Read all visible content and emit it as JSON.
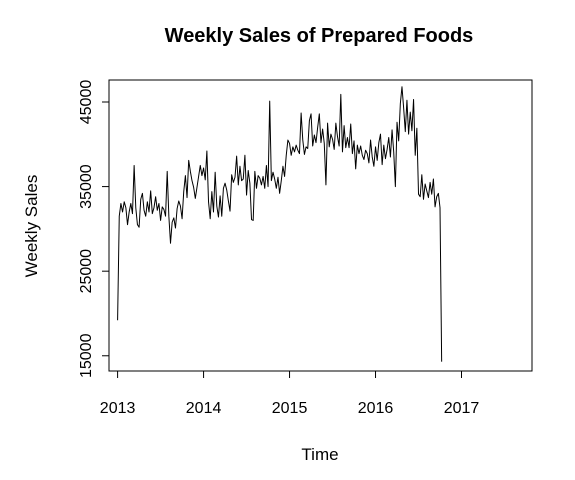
{
  "chart_data": {
    "type": "line",
    "title": "Weekly Sales of Prepared Foods",
    "xlabel": "Time",
    "ylabel": "Weekly Sales",
    "x_ticks": [
      2013,
      2014,
      2015,
      2016,
      2017
    ],
    "y_ticks": [
      15000,
      25000,
      35000,
      45000
    ],
    "xlim": [
      2012.9,
      2017.82
    ],
    "ylim": [
      13200,
      47600
    ],
    "grid": false,
    "legend": "none",
    "line_color": "#000000",
    "series": [
      {
        "frequency": "weekly",
        "x_start": 2013.0,
        "x_step": 0.019231,
        "values": [
          19200,
          31500,
          33000,
          32000,
          33200,
          32500,
          30500,
          32000,
          33000,
          31800,
          37500,
          32500,
          30500,
          30200,
          33500,
          34200,
          32200,
          31500,
          33200,
          32000,
          34500,
          31800,
          32500,
          33800,
          32200,
          33000,
          31000,
          32600,
          32300,
          31500,
          36800,
          31500,
          28300,
          30800,
          31300,
          30100,
          32400,
          33300,
          32700,
          31200,
          34400,
          36300,
          33700,
          38100,
          36800,
          35700,
          34900,
          33600,
          34900,
          36200,
          37500,
          36300,
          37200,
          35800,
          39200,
          33200,
          31200,
          34400,
          32000,
          36700,
          32700,
          31400,
          33900,
          31500,
          34800,
          35400,
          34600,
          33300,
          32100,
          36400,
          35500,
          36100,
          38600,
          35200,
          37400,
          35700,
          35900,
          38700,
          34000,
          36900,
          35400,
          31100,
          31000,
          36800,
          34800,
          36300,
          36000,
          35200,
          36200,
          34800,
          37500,
          35000,
          45100,
          35700,
          36700,
          35900,
          34800,
          36100,
          34200,
          35700,
          37400,
          36200,
          38700,
          40500,
          40100,
          38700,
          39700,
          39100,
          39900,
          39300,
          38900,
          43700,
          40500,
          38800,
          39700,
          39500,
          42800,
          43600,
          39800,
          41100,
          40200,
          42000,
          43600,
          40200,
          41800,
          40100,
          35200,
          42500,
          39700,
          41200,
          40600,
          39400,
          42500,
          40900,
          39800,
          45900,
          39100,
          42200,
          39600,
          40800,
          39600,
          42400,
          38900,
          40400,
          37100,
          39900,
          38900,
          39800,
          38700,
          38200,
          39300,
          38900,
          37800,
          40500,
          38500,
          37400,
          39700,
          38100,
          40200,
          41200,
          37600,
          39900,
          38300,
          39400,
          40800,
          38500,
          41700,
          39100,
          35000,
          42600,
          40400,
          44800,
          46800,
          44300,
          41500,
          45200,
          41200,
          43800,
          41600,
          45300,
          38700,
          41900,
          34100,
          33800,
          36400,
          33500,
          35300,
          34500,
          33700,
          35500,
          34100,
          35900,
          32600,
          33800,
          34200,
          32500,
          14300
        ]
      }
    ]
  }
}
